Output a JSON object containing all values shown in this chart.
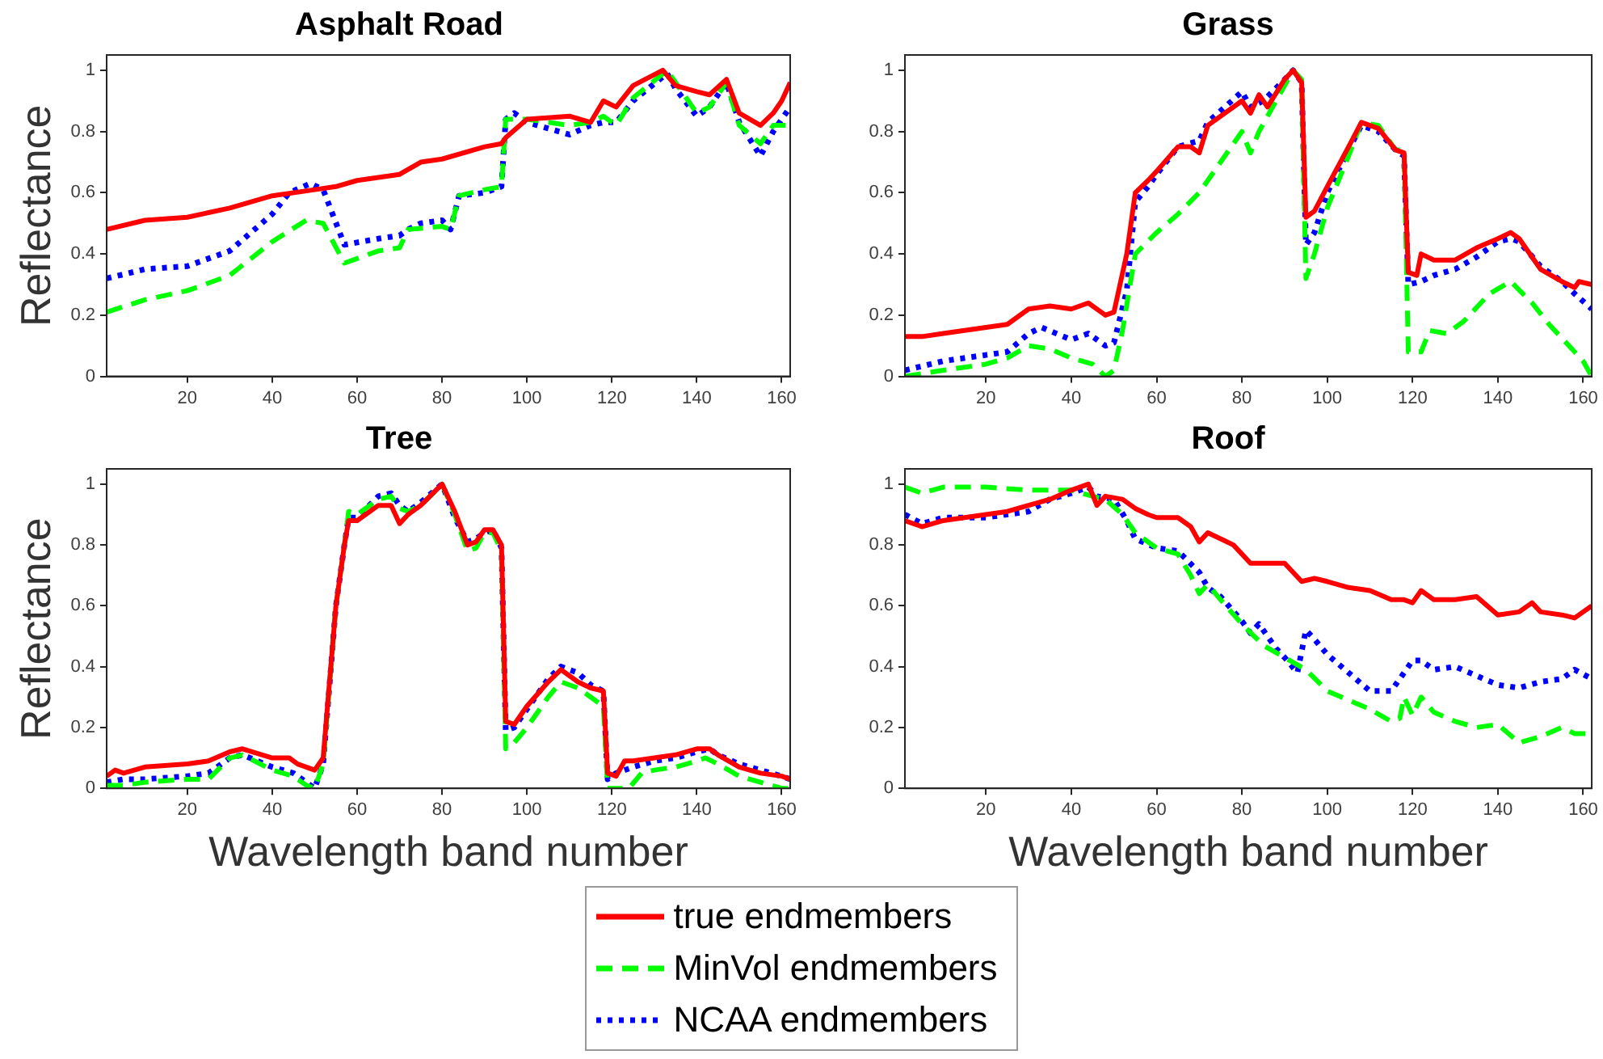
{
  "chart_data": [
    {
      "type": "line",
      "title": "Asphalt Road",
      "ylabel": "Reflectance",
      "xlim": [
        1,
        162
      ],
      "xticks": [
        20,
        40,
        60,
        80,
        100,
        120,
        140,
        160
      ],
      "ylim": [
        0,
        1.05
      ],
      "yticks": [
        0,
        0.2,
        0.4,
        0.6,
        0.8,
        1
      ],
      "grid": false,
      "legend": "bottom",
      "series": [
        {
          "name": "true endmembers",
          "color": "#ff0000",
          "line_style": "solid",
          "x": [
            1,
            10,
            20,
            30,
            40,
            50,
            55,
            60,
            70,
            75,
            80,
            90,
            94,
            95,
            100,
            110,
            115,
            118,
            121,
            125,
            132,
            135,
            140,
            143,
            147,
            150,
            155,
            158,
            160,
            162
          ],
          "values": [
            0.48,
            0.51,
            0.52,
            0.55,
            0.59,
            0.61,
            0.62,
            0.64,
            0.66,
            0.7,
            0.71,
            0.75,
            0.76,
            0.78,
            0.84,
            0.85,
            0.83,
            0.9,
            0.88,
            0.95,
            1.0,
            0.95,
            0.93,
            0.92,
            0.97,
            0.86,
            0.82,
            0.86,
            0.9,
            0.96
          ]
        },
        {
          "name": "MinVol endmembers",
          "color": "#00ff00",
          "line_style": "dashed",
          "x": [
            1,
            10,
            20,
            30,
            40,
            48,
            52,
            57,
            65,
            70,
            72,
            80,
            82,
            84,
            90,
            94,
            95,
            100,
            110,
            115,
            118,
            121,
            125,
            133,
            135,
            140,
            143,
            147,
            150,
            155,
            158,
            162
          ],
          "values": [
            0.21,
            0.25,
            0.28,
            0.33,
            0.44,
            0.51,
            0.5,
            0.37,
            0.41,
            0.42,
            0.48,
            0.49,
            0.48,
            0.59,
            0.61,
            0.62,
            0.84,
            0.84,
            0.82,
            0.83,
            0.85,
            0.82,
            0.91,
            1.0,
            0.96,
            0.86,
            0.88,
            0.96,
            0.82,
            0.76,
            0.82,
            0.82
          ]
        },
        {
          "name": "NCAA endmembers",
          "color": "#0000ff",
          "line_style": "dotted",
          "x": [
            1,
            10,
            20,
            30,
            40,
            44,
            49,
            52,
            57,
            65,
            70,
            72,
            75,
            80,
            82,
            84,
            90,
            94,
            95,
            97,
            100,
            105,
            110,
            115,
            118,
            121,
            125,
            133,
            135,
            140,
            143,
            147,
            150,
            155,
            158,
            162
          ],
          "values": [
            0.32,
            0.35,
            0.36,
            0.41,
            0.53,
            0.6,
            0.63,
            0.61,
            0.43,
            0.45,
            0.46,
            0.48,
            0.5,
            0.51,
            0.48,
            0.59,
            0.6,
            0.62,
            0.84,
            0.86,
            0.83,
            0.81,
            0.79,
            0.82,
            0.83,
            0.83,
            0.9,
            0.99,
            0.94,
            0.85,
            0.88,
            0.96,
            0.83,
            0.72,
            0.8,
            0.88
          ]
        }
      ]
    },
    {
      "type": "line",
      "title": "Grass",
      "xlim": [
        1,
        162
      ],
      "xticks": [
        20,
        40,
        60,
        80,
        100,
        120,
        140,
        160
      ],
      "ylim": [
        0,
        1.05
      ],
      "yticks": [
        0,
        0.2,
        0.4,
        0.6,
        0.8,
        1
      ],
      "grid": false,
      "series": [
        {
          "color": "#ff0000",
          "line_style": "solid",
          "x": [
            1,
            5,
            10,
            20,
            25,
            30,
            35,
            40,
            44,
            48,
            50,
            53,
            55,
            58,
            60,
            65,
            68,
            70,
            72,
            80,
            82,
            84,
            86,
            90,
            92,
            94,
            95,
            97,
            100,
            105,
            108,
            112,
            116,
            118,
            119,
            121,
            122,
            125,
            130,
            135,
            140,
            143,
            145,
            150,
            155,
            158,
            159,
            162
          ],
          "values": [
            0.13,
            0.13,
            0.14,
            0.16,
            0.17,
            0.22,
            0.23,
            0.22,
            0.24,
            0.2,
            0.21,
            0.4,
            0.6,
            0.64,
            0.67,
            0.75,
            0.75,
            0.73,
            0.82,
            0.9,
            0.86,
            0.92,
            0.88,
            0.97,
            1.0,
            0.96,
            0.52,
            0.54,
            0.62,
            0.75,
            0.83,
            0.81,
            0.74,
            0.73,
            0.34,
            0.33,
            0.4,
            0.38,
            0.38,
            0.42,
            0.45,
            0.47,
            0.45,
            0.35,
            0.31,
            0.29,
            0.31,
            0.3
          ]
        },
        {
          "color": "#00ff00",
          "line_style": "dashed",
          "x": [
            1,
            10,
            20,
            25,
            30,
            35,
            40,
            45,
            48,
            50,
            52,
            55,
            60,
            65,
            70,
            75,
            80,
            82,
            84,
            88,
            92,
            94,
            95,
            97,
            100,
            105,
            108,
            112,
            116,
            118,
            119,
            122,
            124,
            128,
            132,
            138,
            143,
            148,
            152,
            158,
            160,
            162
          ],
          "values": [
            0.0,
            0.02,
            0.04,
            0.06,
            0.1,
            0.09,
            0.06,
            0.04,
            0.0,
            0.02,
            0.15,
            0.4,
            0.47,
            0.53,
            0.6,
            0.7,
            0.8,
            0.73,
            0.8,
            0.9,
            1.0,
            0.97,
            0.32,
            0.4,
            0.55,
            0.72,
            0.83,
            0.82,
            0.74,
            0.74,
            0.08,
            0.08,
            0.15,
            0.14,
            0.18,
            0.27,
            0.31,
            0.24,
            0.17,
            0.08,
            0.05,
            0.0
          ]
        },
        {
          "color": "#0000ff",
          "line_style": "dotted",
          "x": [
            1,
            10,
            20,
            25,
            30,
            33,
            40,
            44,
            48,
            50,
            53,
            55,
            58,
            60,
            65,
            70,
            72,
            80,
            82,
            85,
            90,
            92,
            94,
            95,
            97,
            100,
            105,
            108,
            112,
            116,
            118,
            119,
            122,
            125,
            130,
            135,
            140,
            143,
            145,
            150,
            155,
            158,
            162
          ],
          "values": [
            0.02,
            0.05,
            0.07,
            0.08,
            0.14,
            0.16,
            0.12,
            0.14,
            0.1,
            0.11,
            0.28,
            0.57,
            0.62,
            0.66,
            0.75,
            0.77,
            0.83,
            0.93,
            0.88,
            0.9,
            0.97,
            1.0,
            0.96,
            0.43,
            0.47,
            0.6,
            0.74,
            0.82,
            0.8,
            0.74,
            0.72,
            0.3,
            0.31,
            0.33,
            0.35,
            0.39,
            0.44,
            0.45,
            0.44,
            0.36,
            0.31,
            0.27,
            0.22
          ]
        }
      ]
    },
    {
      "type": "line",
      "title": "Tree",
      "xlabel": "Wavelength band number",
      "ylabel": "Reflectance",
      "xlim": [
        1,
        162
      ],
      "xticks": [
        20,
        40,
        60,
        80,
        100,
        120,
        140,
        160
      ],
      "ylim": [
        0,
        1.05
      ],
      "yticks": [
        0,
        0.2,
        0.4,
        0.6,
        0.8,
        1
      ],
      "grid": false,
      "series": [
        {
          "color": "#ff0000",
          "line_style": "solid",
          "x": [
            1,
            3,
            5,
            10,
            20,
            25,
            30,
            33,
            40,
            44,
            46,
            50,
            52,
            55,
            57,
            58,
            60,
            65,
            68,
            70,
            72,
            75,
            80,
            83,
            86,
            88,
            90,
            92,
            94,
            95,
            97,
            100,
            105,
            108,
            112,
            115,
            118,
            119,
            121,
            123,
            125,
            130,
            135,
            140,
            143,
            145,
            150,
            155,
            160,
            162
          ],
          "values": [
            0.04,
            0.06,
            0.05,
            0.07,
            0.08,
            0.09,
            0.12,
            0.13,
            0.1,
            0.1,
            0.08,
            0.06,
            0.1,
            0.6,
            0.8,
            0.88,
            0.88,
            0.93,
            0.93,
            0.87,
            0.9,
            0.93,
            1.0,
            0.91,
            0.8,
            0.81,
            0.85,
            0.85,
            0.8,
            0.22,
            0.21,
            0.27,
            0.35,
            0.39,
            0.35,
            0.33,
            0.32,
            0.05,
            0.04,
            0.09,
            0.09,
            0.1,
            0.11,
            0.13,
            0.13,
            0.11,
            0.07,
            0.05,
            0.04,
            0.03
          ]
        },
        {
          "color": "#00ff00",
          "line_style": "dashed",
          "x": [
            1,
            5,
            10,
            20,
            25,
            30,
            33,
            40,
            45,
            48,
            50,
            52,
            55,
            57,
            58,
            60,
            65,
            68,
            70,
            72,
            75,
            80,
            83,
            86,
            88,
            90,
            92,
            94,
            95,
            97,
            100,
            105,
            108,
            112,
            115,
            118,
            119,
            122,
            124,
            127,
            130,
            135,
            140,
            142,
            145,
            150,
            155,
            160,
            162
          ],
          "values": [
            0.01,
            0.01,
            0.02,
            0.03,
            0.03,
            0.1,
            0.11,
            0.06,
            0.04,
            0.01,
            0.0,
            0.08,
            0.6,
            0.8,
            0.91,
            0.9,
            0.95,
            0.96,
            0.92,
            0.91,
            0.93,
            1.0,
            0.9,
            0.78,
            0.79,
            0.84,
            0.84,
            0.78,
            0.13,
            0.15,
            0.2,
            0.3,
            0.35,
            0.33,
            0.3,
            0.27,
            0.0,
            0.0,
            0.0,
            0.05,
            0.06,
            0.07,
            0.09,
            0.1,
            0.08,
            0.04,
            0.02,
            0.0,
            0.0
          ]
        },
        {
          "color": "#0000ff",
          "line_style": "dotted",
          "x": [
            1,
            5,
            10,
            20,
            25,
            30,
            33,
            40,
            45,
            48,
            50,
            52,
            55,
            57,
            58,
            60,
            65,
            68,
            70,
            72,
            75,
            80,
            83,
            86,
            88,
            90,
            92,
            94,
            95,
            97,
            100,
            105,
            108,
            112,
            115,
            118,
            119,
            121,
            125,
            130,
            135,
            140,
            143,
            145,
            150,
            155,
            160,
            162
          ],
          "values": [
            0.02,
            0.03,
            0.03,
            0.04,
            0.05,
            0.1,
            0.11,
            0.07,
            0.05,
            0.02,
            0.0,
            0.08,
            0.6,
            0.8,
            0.89,
            0.89,
            0.96,
            0.97,
            0.93,
            0.91,
            0.94,
            1.0,
            0.89,
            0.81,
            0.82,
            0.84,
            0.85,
            0.79,
            0.19,
            0.2,
            0.26,
            0.36,
            0.4,
            0.38,
            0.34,
            0.32,
            0.03,
            0.05,
            0.07,
            0.09,
            0.1,
            0.12,
            0.13,
            0.11,
            0.08,
            0.06,
            0.04,
            0.03
          ]
        }
      ]
    },
    {
      "type": "line",
      "title": "Roof",
      "xlabel": "Wavelength band number",
      "xlim": [
        1,
        162
      ],
      "xticks": [
        20,
        40,
        60,
        80,
        100,
        120,
        140,
        160
      ],
      "ylim": [
        0,
        1.05
      ],
      "yticks": [
        0,
        0.2,
        0.4,
        0.6,
        0.8,
        1
      ],
      "grid": false,
      "series": [
        {
          "color": "#ff0000",
          "line_style": "solid",
          "x": [
            1,
            5,
            10,
            20,
            25,
            30,
            35,
            40,
            44,
            46,
            48,
            52,
            55,
            58,
            60,
            65,
            68,
            70,
            72,
            75,
            78,
            80,
            82,
            86,
            90,
            94,
            97,
            100,
            105,
            110,
            115,
            118,
            120,
            122,
            125,
            130,
            135,
            140,
            145,
            148,
            150,
            155,
            158,
            160,
            162
          ],
          "values": [
            0.88,
            0.86,
            0.88,
            0.9,
            0.91,
            0.93,
            0.95,
            0.98,
            1.0,
            0.93,
            0.96,
            0.95,
            0.92,
            0.9,
            0.89,
            0.89,
            0.86,
            0.81,
            0.84,
            0.82,
            0.8,
            0.77,
            0.74,
            0.74,
            0.74,
            0.68,
            0.69,
            0.68,
            0.66,
            0.65,
            0.62,
            0.62,
            0.61,
            0.65,
            0.62,
            0.62,
            0.63,
            0.57,
            0.58,
            0.61,
            0.58,
            0.57,
            0.56,
            0.58,
            0.6
          ]
        },
        {
          "color": "#00ff00",
          "line_style": "dashed",
          "x": [
            1,
            5,
            10,
            20,
            30,
            40,
            45,
            48,
            52,
            55,
            60,
            65,
            68,
            70,
            72,
            75,
            80,
            85,
            90,
            95,
            100,
            105,
            110,
            115,
            117,
            118,
            120,
            122,
            125,
            130,
            135,
            140,
            145,
            150,
            155,
            158,
            162
          ],
          "values": [
            0.99,
            0.97,
            0.99,
            0.99,
            0.98,
            0.98,
            0.96,
            0.95,
            0.9,
            0.84,
            0.79,
            0.77,
            0.7,
            0.64,
            0.67,
            0.62,
            0.54,
            0.47,
            0.43,
            0.39,
            0.32,
            0.29,
            0.26,
            0.22,
            0.23,
            0.3,
            0.24,
            0.3,
            0.25,
            0.22,
            0.2,
            0.21,
            0.15,
            0.17,
            0.2,
            0.18,
            0.18
          ]
        },
        {
          "color": "#0000ff",
          "line_style": "dotted",
          "x": [
            1,
            5,
            10,
            20,
            30,
            35,
            40,
            44,
            46,
            50,
            53,
            55,
            60,
            65,
            70,
            72,
            75,
            80,
            82,
            84,
            88,
            90,
            93,
            95,
            97,
            100,
            105,
            110,
            115,
            118,
            120,
            122,
            125,
            130,
            135,
            140,
            145,
            150,
            155,
            158,
            162
          ],
          "values": [
            0.9,
            0.87,
            0.89,
            0.89,
            0.91,
            0.95,
            0.97,
            0.99,
            0.96,
            0.95,
            0.88,
            0.82,
            0.79,
            0.78,
            0.71,
            0.66,
            0.63,
            0.55,
            0.51,
            0.54,
            0.46,
            0.43,
            0.38,
            0.52,
            0.49,
            0.44,
            0.38,
            0.32,
            0.32,
            0.38,
            0.42,
            0.42,
            0.39,
            0.4,
            0.37,
            0.34,
            0.33,
            0.35,
            0.36,
            0.39,
            0.36
          ]
        }
      ]
    }
  ]
}
